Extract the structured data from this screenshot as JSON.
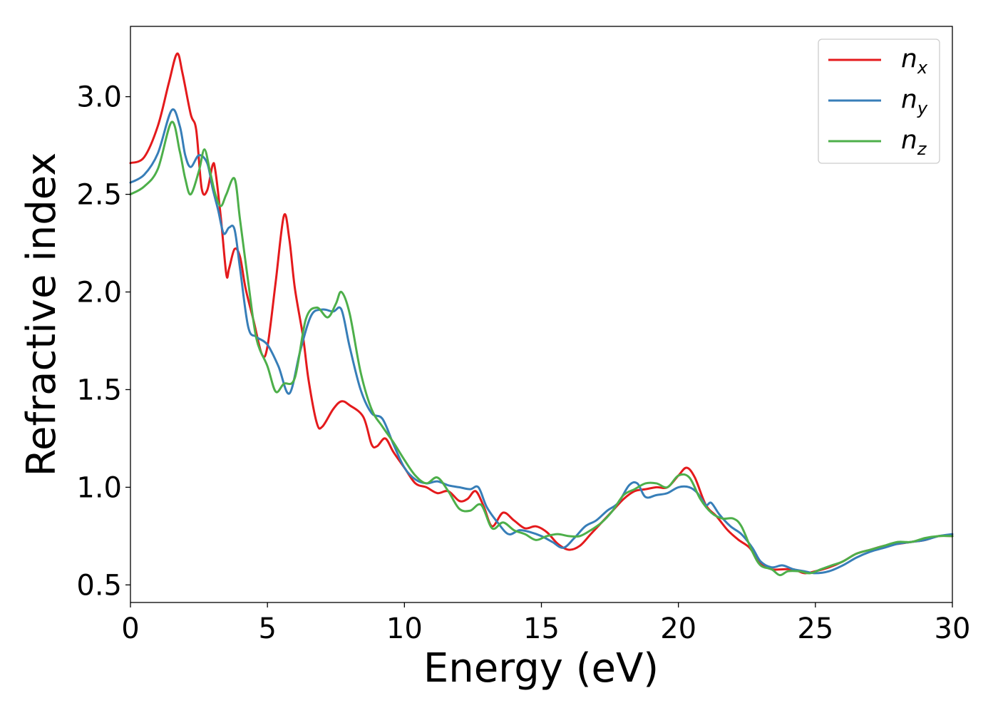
{
  "chart_data": {
    "type": "line",
    "title": "",
    "xlabel": "Energy (eV)",
    "ylabel": "Refractive index",
    "xlim": [
      0,
      30
    ],
    "ylim": [
      0.41,
      3.36
    ],
    "xticks": [
      0,
      5,
      10,
      15,
      20,
      25,
      30
    ],
    "xtick_labels": [
      "0",
      "5",
      "10",
      "15",
      "20",
      "25",
      "30"
    ],
    "yticks": [
      0.5,
      1.0,
      1.5,
      2.0,
      2.5,
      3.0
    ],
    "ytick_labels": [
      "0.5",
      "1.0",
      "1.5",
      "2.0",
      "2.5",
      "3.0"
    ],
    "grid": false,
    "legend_position": "top-right",
    "series": [
      {
        "name": "n_x",
        "label_base": "n",
        "label_sub": "x",
        "color": "#e41a1c",
        "x": [
          0,
          0.5,
          1.0,
          1.4,
          1.7,
          1.9,
          2.2,
          2.4,
          2.6,
          2.8,
          3.0,
          3.1,
          3.3,
          3.5,
          3.6,
          3.8,
          4.0,
          4.2,
          4.5,
          4.8,
          5.0,
          5.3,
          5.6,
          5.8,
          6.0,
          6.3,
          6.5,
          6.8,
          7.0,
          7.4,
          7.7,
          8.0,
          8.5,
          8.8,
          9.0,
          9.3,
          9.6,
          10.0,
          10.4,
          10.8,
          11.2,
          11.6,
          12.0,
          12.3,
          12.6,
          12.9,
          13.2,
          13.6,
          14.0,
          14.4,
          14.8,
          15.2,
          15.6,
          16.0,
          16.4,
          16.8,
          17.2,
          17.6,
          18.0,
          18.4,
          18.8,
          19.2,
          19.6,
          20.0,
          20.3,
          20.6,
          21.0,
          21.4,
          21.8,
          22.2,
          22.6,
          23.0,
          23.4,
          23.8,
          24.2,
          24.6,
          25.0,
          25.5,
          26.0,
          26.5,
          27.0,
          27.5,
          28.0,
          28.5,
          29.0,
          29.5,
          30.0
        ],
        "y": [
          2.66,
          2.69,
          2.85,
          3.07,
          3.22,
          3.12,
          2.91,
          2.83,
          2.53,
          2.52,
          2.65,
          2.62,
          2.38,
          2.09,
          2.12,
          2.22,
          2.18,
          2.02,
          1.85,
          1.68,
          1.72,
          2.05,
          2.39,
          2.27,
          2.02,
          1.77,
          1.55,
          1.33,
          1.31,
          1.4,
          1.44,
          1.42,
          1.36,
          1.22,
          1.21,
          1.25,
          1.18,
          1.1,
          1.02,
          1.0,
          0.97,
          0.98,
          0.93,
          0.94,
          0.98,
          0.9,
          0.8,
          0.87,
          0.83,
          0.79,
          0.8,
          0.77,
          0.71,
          0.68,
          0.7,
          0.76,
          0.82,
          0.88,
          0.94,
          0.98,
          0.99,
          1.0,
          1.0,
          1.06,
          1.1,
          1.05,
          0.91,
          0.85,
          0.78,
          0.73,
          0.69,
          0.61,
          0.58,
          0.58,
          0.58,
          0.56,
          0.57,
          0.59,
          0.62,
          0.66,
          0.68,
          0.7,
          0.71,
          0.72,
          0.73,
          0.75,
          0.75
        ]
      },
      {
        "name": "n_y",
        "label_base": "n",
        "label_sub": "y",
        "color": "#377eb8",
        "x": [
          0,
          0.5,
          1.0,
          1.5,
          1.8,
          2.0,
          2.2,
          2.5,
          2.8,
          3.0,
          3.2,
          3.4,
          3.6,
          3.8,
          4.0,
          4.3,
          4.6,
          5.0,
          5.4,
          5.8,
          6.2,
          6.6,
          7.0,
          7.4,
          7.7,
          8.0,
          8.4,
          8.8,
          9.2,
          9.6,
          10.0,
          10.4,
          10.8,
          11.2,
          11.6,
          12.0,
          12.4,
          12.7,
          13.0,
          13.4,
          13.8,
          14.2,
          14.6,
          15.0,
          15.4,
          15.8,
          16.2,
          16.6,
          17.0,
          17.4,
          17.8,
          18.2,
          18.5,
          18.8,
          19.2,
          19.6,
          20.0,
          20.4,
          20.7,
          21.0,
          21.2,
          21.5,
          21.9,
          22.3,
          22.7,
          23.0,
          23.4,
          23.8,
          24.2,
          24.6,
          25.0,
          25.5,
          26.0,
          26.5,
          27.0,
          27.5,
          28.0,
          28.5,
          29.0,
          29.5,
          30.0
        ],
        "y": [
          2.56,
          2.6,
          2.71,
          2.93,
          2.85,
          2.7,
          2.64,
          2.7,
          2.66,
          2.53,
          2.42,
          2.3,
          2.33,
          2.32,
          2.12,
          1.82,
          1.77,
          1.73,
          1.62,
          1.48,
          1.7,
          1.88,
          1.91,
          1.9,
          1.91,
          1.72,
          1.5,
          1.38,
          1.35,
          1.22,
          1.1,
          1.04,
          1.02,
          1.03,
          1.01,
          1.0,
          0.99,
          1.0,
          0.9,
          0.82,
          0.76,
          0.78,
          0.77,
          0.75,
          0.72,
          0.69,
          0.74,
          0.8,
          0.83,
          0.88,
          0.92,
          1.01,
          1.02,
          0.95,
          0.96,
          0.97,
          1.0,
          1.0,
          0.97,
          0.91,
          0.92,
          0.86,
          0.8,
          0.76,
          0.69,
          0.62,
          0.59,
          0.6,
          0.58,
          0.57,
          0.56,
          0.57,
          0.6,
          0.64,
          0.67,
          0.69,
          0.71,
          0.72,
          0.73,
          0.75,
          0.76
        ]
      },
      {
        "name": "n_z",
        "label_base": "n",
        "label_sub": "z",
        "color": "#4daf4a",
        "x": [
          0,
          0.5,
          1.0,
          1.5,
          1.8,
          2.0,
          2.2,
          2.5,
          2.7,
          2.9,
          3.1,
          3.3,
          3.5,
          3.8,
          4.0,
          4.3,
          4.6,
          5.0,
          5.3,
          5.6,
          6.0,
          6.4,
          6.8,
          7.2,
          7.5,
          7.7,
          8.0,
          8.4,
          8.8,
          9.2,
          9.6,
          10.0,
          10.4,
          10.8,
          11.2,
          11.6,
          12.0,
          12.4,
          12.8,
          13.2,
          13.6,
          14.0,
          14.4,
          14.8,
          15.2,
          15.6,
          16.0,
          16.4,
          16.8,
          17.2,
          17.6,
          18.0,
          18.4,
          18.8,
          19.2,
          19.6,
          20.0,
          20.4,
          20.8,
          21.2,
          21.6,
          22.0,
          22.3,
          22.7,
          23.0,
          23.4,
          23.7,
          24.0,
          24.4,
          24.8,
          25.2,
          25.6,
          26.0,
          26.5,
          27.0,
          27.5,
          28.0,
          28.5,
          29.0,
          29.5,
          30.0
        ],
        "y": [
          2.5,
          2.54,
          2.63,
          2.87,
          2.72,
          2.58,
          2.5,
          2.62,
          2.73,
          2.62,
          2.5,
          2.44,
          2.5,
          2.58,
          2.37,
          2.05,
          1.76,
          1.62,
          1.49,
          1.53,
          1.56,
          1.86,
          1.92,
          1.87,
          1.94,
          2.0,
          1.89,
          1.59,
          1.4,
          1.31,
          1.23,
          1.14,
          1.06,
          1.02,
          1.05,
          0.98,
          0.89,
          0.88,
          0.91,
          0.79,
          0.82,
          0.78,
          0.76,
          0.73,
          0.75,
          0.76,
          0.75,
          0.75,
          0.78,
          0.82,
          0.88,
          0.96,
          0.99,
          1.02,
          1.02,
          1.0,
          1.06,
          1.05,
          0.94,
          0.87,
          0.84,
          0.84,
          0.8,
          0.67,
          0.6,
          0.58,
          0.55,
          0.57,
          0.57,
          0.56,
          0.58,
          0.6,
          0.62,
          0.66,
          0.68,
          0.7,
          0.72,
          0.72,
          0.74,
          0.75,
          0.75
        ]
      }
    ]
  }
}
